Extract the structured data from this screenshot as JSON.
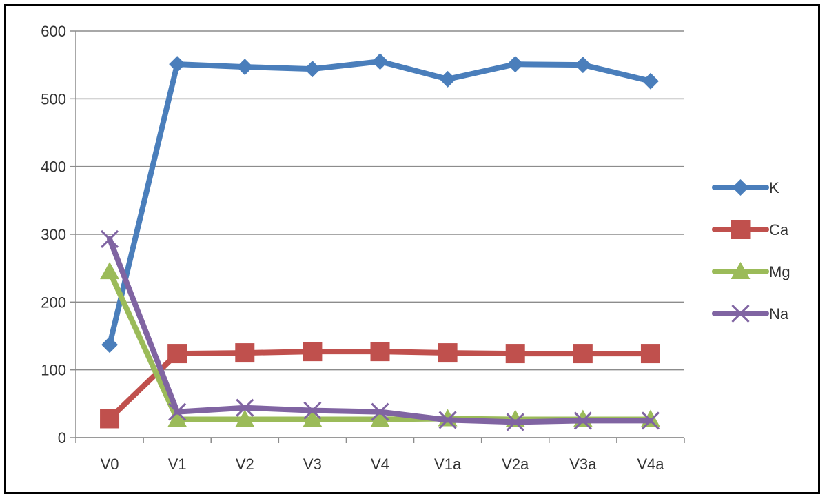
{
  "chart_data": {
    "type": "line",
    "title": "",
    "xlabel": "",
    "ylabel": "",
    "categories": [
      "V0",
      "V1",
      "V2",
      "V3",
      "V4",
      "V1a",
      "V2a",
      "V3a",
      "V4a"
    ],
    "ylim": [
      0,
      600
    ],
    "yticks": [
      "0",
      "100",
      "200",
      "300",
      "400",
      "500",
      "600"
    ],
    "grid": true,
    "legend": "right",
    "series": [
      {
        "name": "K",
        "color": "#4a7ebb",
        "marker": "diamond",
        "values": [
          137,
          551,
          547,
          544,
          555,
          529,
          551,
          550,
          526
        ]
      },
      {
        "name": "Ca",
        "color": "#c0504d",
        "marker": "square",
        "values": [
          28,
          124,
          125,
          127,
          127,
          125,
          124,
          124,
          124
        ]
      },
      {
        "name": "Mg",
        "color": "#9bbb59",
        "marker": "triangle",
        "values": [
          245,
          27,
          27,
          27,
          27,
          28,
          27,
          27,
          27
        ]
      },
      {
        "name": "Na",
        "color": "#8064a2",
        "marker": "x",
        "values": [
          293,
          38,
          44,
          40,
          38,
          26,
          23,
          25,
          25
        ]
      }
    ]
  }
}
